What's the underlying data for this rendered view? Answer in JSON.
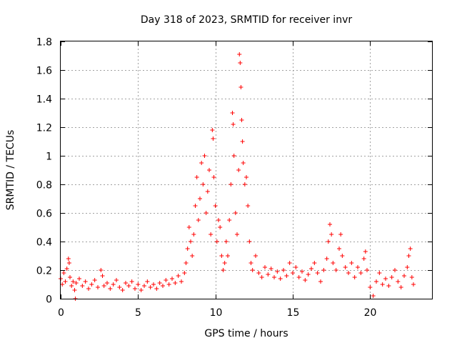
{
  "chart_data": {
    "type": "scatter",
    "title": "Day 318 of 2023, SRMTID for receiver invr",
    "xlabel": "GPS time / hours",
    "ylabel": "SRMTID / TECUs",
    "xlim": [
      0,
      24
    ],
    "ylim": [
      0,
      1.8
    ],
    "xticks": [
      0,
      5,
      10,
      15,
      20
    ],
    "xtick_labels": [
      "0",
      "5",
      "10",
      "15",
      "20"
    ],
    "yticks": [
      0,
      0.2,
      0.4,
      0.6,
      0.8,
      1,
      1.2,
      1.4,
      1.6,
      1.8
    ],
    "ytick_labels": [
      "0",
      "0.2",
      "0.4",
      "0.6",
      "0.8",
      "1",
      "1.2",
      "1.4",
      "1.6",
      "1.8"
    ],
    "grid": true,
    "marker": "+",
    "color": "#ff0000",
    "series": [
      {
        "name": "SRMTID",
        "points": [
          [
            0.0,
            0.14
          ],
          [
            0.1,
            0.1
          ],
          [
            0.2,
            0.18
          ],
          [
            0.3,
            0.12
          ],
          [
            0.4,
            0.21
          ],
          [
            0.5,
            0.28
          ],
          [
            0.55,
            0.25
          ],
          [
            0.6,
            0.15
          ],
          [
            0.7,
            0.09
          ],
          [
            0.8,
            0.12
          ],
          [
            0.9,
            0.06
          ],
          [
            0.95,
            0.0
          ],
          [
            1.0,
            0.11
          ],
          [
            1.2,
            0.14
          ],
          [
            1.4,
            0.09
          ],
          [
            1.6,
            0.12
          ],
          [
            1.8,
            0.07
          ],
          [
            2.0,
            0.1
          ],
          [
            2.2,
            0.13
          ],
          [
            2.4,
            0.08
          ],
          [
            2.6,
            0.2
          ],
          [
            2.7,
            0.16
          ],
          [
            2.8,
            0.09
          ],
          [
            3.0,
            0.11
          ],
          [
            3.2,
            0.07
          ],
          [
            3.4,
            0.1
          ],
          [
            3.6,
            0.13
          ],
          [
            3.8,
            0.08
          ],
          [
            4.0,
            0.06
          ],
          [
            4.2,
            0.11
          ],
          [
            4.4,
            0.09
          ],
          [
            4.6,
            0.12
          ],
          [
            4.8,
            0.07
          ],
          [
            5.0,
            0.1
          ],
          [
            5.2,
            0.06
          ],
          [
            5.4,
            0.09
          ],
          [
            5.6,
            0.12
          ],
          [
            5.8,
            0.08
          ],
          [
            6.0,
            0.1
          ],
          [
            6.2,
            0.07
          ],
          [
            6.4,
            0.11
          ],
          [
            6.6,
            0.09
          ],
          [
            6.8,
            0.13
          ],
          [
            7.0,
            0.1
          ],
          [
            7.2,
            0.14
          ],
          [
            7.4,
            0.11
          ],
          [
            7.6,
            0.16
          ],
          [
            7.8,
            0.12
          ],
          [
            8.0,
            0.18
          ],
          [
            8.1,
            0.25
          ],
          [
            8.2,
            0.35
          ],
          [
            8.3,
            0.5
          ],
          [
            8.4,
            0.4
          ],
          [
            8.5,
            0.3
          ],
          [
            8.6,
            0.45
          ],
          [
            8.7,
            0.65
          ],
          [
            8.8,
            0.85
          ],
          [
            8.9,
            0.55
          ],
          [
            9.0,
            0.7
          ],
          [
            9.1,
            0.95
          ],
          [
            9.2,
            0.8
          ],
          [
            9.3,
            1.0
          ],
          [
            9.4,
            0.6
          ],
          [
            9.5,
            0.75
          ],
          [
            9.6,
            0.9
          ],
          [
            9.7,
            0.45
          ],
          [
            9.8,
            1.18
          ],
          [
            9.85,
            1.12
          ],
          [
            9.9,
            0.85
          ],
          [
            10.0,
            0.65
          ],
          [
            10.1,
            0.4
          ],
          [
            10.2,
            0.55
          ],
          [
            10.3,
            0.5
          ],
          [
            10.4,
            0.3
          ],
          [
            10.5,
            0.2
          ],
          [
            10.6,
            0.25
          ],
          [
            10.7,
            0.4
          ],
          [
            10.8,
            0.3
          ],
          [
            10.9,
            0.55
          ],
          [
            11.0,
            0.8
          ],
          [
            11.1,
            1.3
          ],
          [
            11.15,
            1.22
          ],
          [
            11.2,
            1.0
          ],
          [
            11.3,
            0.6
          ],
          [
            11.4,
            0.45
          ],
          [
            11.5,
            0.9
          ],
          [
            11.55,
            1.71
          ],
          [
            11.6,
            1.65
          ],
          [
            11.65,
            1.48
          ],
          [
            11.7,
            1.25
          ],
          [
            11.75,
            1.1
          ],
          [
            11.8,
            0.95
          ],
          [
            11.9,
            0.8
          ],
          [
            12.0,
            0.85
          ],
          [
            12.1,
            0.65
          ],
          [
            12.2,
            0.4
          ],
          [
            12.3,
            0.25
          ],
          [
            12.4,
            0.2
          ],
          [
            12.6,
            0.3
          ],
          [
            12.8,
            0.18
          ],
          [
            13.0,
            0.15
          ],
          [
            13.2,
            0.22
          ],
          [
            13.4,
            0.17
          ],
          [
            13.6,
            0.21
          ],
          [
            13.8,
            0.15
          ],
          [
            14.0,
            0.19
          ],
          [
            14.2,
            0.14
          ],
          [
            14.4,
            0.2
          ],
          [
            14.6,
            0.16
          ],
          [
            14.8,
            0.25
          ],
          [
            15.0,
            0.18
          ],
          [
            15.2,
            0.22
          ],
          [
            15.4,
            0.15
          ],
          [
            15.6,
            0.19
          ],
          [
            15.8,
            0.13
          ],
          [
            16.0,
            0.17
          ],
          [
            16.2,
            0.21
          ],
          [
            16.4,
            0.25
          ],
          [
            16.6,
            0.18
          ],
          [
            16.8,
            0.12
          ],
          [
            17.0,
            0.2
          ],
          [
            17.2,
            0.28
          ],
          [
            17.3,
            0.4
          ],
          [
            17.4,
            0.52
          ],
          [
            17.5,
            0.45
          ],
          [
            17.6,
            0.25
          ],
          [
            17.8,
            0.2
          ],
          [
            18.0,
            0.35
          ],
          [
            18.1,
            0.45
          ],
          [
            18.2,
            0.3
          ],
          [
            18.4,
            0.22
          ],
          [
            18.6,
            0.18
          ],
          [
            18.8,
            0.25
          ],
          [
            19.0,
            0.15
          ],
          [
            19.2,
            0.22
          ],
          [
            19.4,
            0.18
          ],
          [
            19.6,
            0.28
          ],
          [
            19.7,
            0.33
          ],
          [
            19.8,
            0.2
          ],
          [
            20.0,
            0.08
          ],
          [
            20.2,
            0.02
          ],
          [
            20.4,
            0.12
          ],
          [
            20.6,
            0.18
          ],
          [
            20.8,
            0.1
          ],
          [
            21.0,
            0.14
          ],
          [
            21.2,
            0.09
          ],
          [
            21.4,
            0.15
          ],
          [
            21.6,
            0.2
          ],
          [
            21.8,
            0.12
          ],
          [
            22.0,
            0.08
          ],
          [
            22.2,
            0.16
          ],
          [
            22.4,
            0.22
          ],
          [
            22.5,
            0.3
          ],
          [
            22.6,
            0.35
          ],
          [
            22.7,
            0.15
          ],
          [
            22.8,
            0.1
          ]
        ]
      }
    ]
  }
}
